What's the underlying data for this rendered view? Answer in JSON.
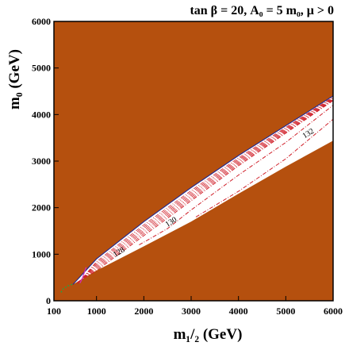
{
  "chart_data": {
    "type": "area",
    "title": "tan β = 20, A₀ = 5 m₀, μ > 0",
    "xlabel": "m₁/₂ (GeV)",
    "ylabel": "m₀ (GeV)",
    "xlim": [
      100,
      6000
    ],
    "ylim": [
      0,
      6000
    ],
    "x_ticks": [
      100,
      1000,
      2000,
      3000,
      4000,
      5000,
      6000
    ],
    "y_ticks": [
      0,
      1000,
      2000,
      3000,
      4000,
      5000,
      6000
    ],
    "colors": {
      "excluded_region": "#b5500e",
      "allowed_region": "#ffffff",
      "higgs_contours": "#d0202a",
      "boundary": "#2a2a8c",
      "green_band": "#2e9e3e",
      "magenta_line": "#d030c0"
    },
    "allowed_region": {
      "upper_edge": [
        [
          500,
          350
        ],
        [
          1000,
          900
        ],
        [
          2000,
          1700
        ],
        [
          3000,
          2430
        ],
        [
          4000,
          3120
        ],
        [
          5000,
          3760
        ],
        [
          6000,
          4400
        ]
      ],
      "lower_edge": [
        [
          500,
          350
        ],
        [
          1000,
          650
        ],
        [
          2000,
          1170
        ],
        [
          3000,
          1700
        ],
        [
          4000,
          2300
        ],
        [
          5000,
          2880
        ],
        [
          6000,
          3440
        ]
      ]
    },
    "higgs_mass_contours": [
      {
        "label": "128",
        "points": [
          [
            600,
            400
          ],
          [
            1000,
            650
          ],
          [
            2000,
            1400
          ],
          [
            3000,
            2150
          ],
          [
            4000,
            2900
          ],
          [
            5000,
            3600
          ],
          [
            6000,
            4300
          ]
        ]
      },
      {
        "label": "130",
        "points": [
          [
            1900,
            1200
          ],
          [
            2500,
            1550
          ],
          [
            3000,
            1950
          ],
          [
            4000,
            2700
          ],
          [
            5000,
            3400
          ],
          [
            6000,
            4200
          ]
        ]
      },
      {
        "label": "132",
        "points": [
          [
            3100,
            1800
          ],
          [
            4000,
            2350
          ],
          [
            5000,
            3050
          ],
          [
            6000,
            3900
          ]
        ]
      }
    ],
    "contour_labels": [
      {
        "text": "128",
        "x": 1500,
        "y": 1000
      },
      {
        "text": "130",
        "x": 2600,
        "y": 1650
      },
      {
        "text": "132",
        "x": 5500,
        "y": 3550
      }
    ]
  }
}
